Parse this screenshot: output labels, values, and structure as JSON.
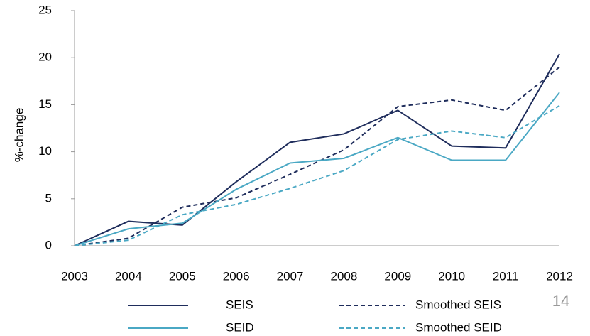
{
  "chart_data": {
    "type": "line",
    "y_label": "%-change",
    "categories": [
      "2003",
      "2004",
      "2005",
      "2006",
      "2007",
      "2008",
      "2009",
      "2010",
      "2011",
      "2012"
    ],
    "ylim": [
      0,
      25
    ],
    "yticks": [
      0,
      5,
      10,
      15,
      20,
      25
    ],
    "series": [
      {
        "name": "SEIS",
        "color": "#1f2d5c",
        "dashed": false,
        "values": [
          0,
          2.6,
          2.2,
          6.8,
          11.0,
          11.9,
          14.4,
          10.6,
          10.4,
          20.4
        ]
      },
      {
        "name": "Smoothed SEIS",
        "color": "#1f2d5c",
        "dashed": true,
        "values": [
          0,
          0.8,
          4.1,
          5.1,
          7.6,
          10.2,
          14.8,
          15.5,
          14.4,
          19.0
        ]
      },
      {
        "name": "SEID",
        "color": "#4aa8c4",
        "dashed": false,
        "values": [
          0,
          1.8,
          2.4,
          6.0,
          8.8,
          9.3,
          11.5,
          9.1,
          9.1,
          16.3
        ]
      },
      {
        "name": "Smoothed SEID",
        "color": "#4aa8c4",
        "dashed": true,
        "values": [
          0,
          0.6,
          3.3,
          4.4,
          6.1,
          8.0,
          11.3,
          12.2,
          11.5,
          14.9
        ]
      }
    ],
    "page_number": "14"
  }
}
